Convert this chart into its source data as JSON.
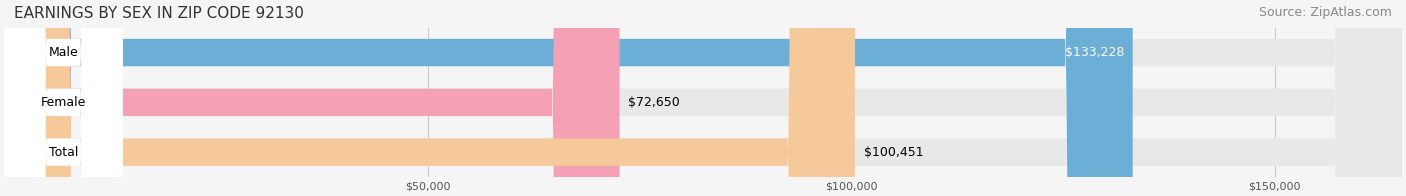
{
  "title": "EARNINGS BY SEX IN ZIP CODE 92130",
  "source": "Source: ZipAtlas.com",
  "categories": [
    "Male",
    "Female",
    "Total"
  ],
  "values": [
    133228,
    72650,
    100451
  ],
  "bar_colors": [
    "#6baed6",
    "#f4a0b5",
    "#f5c99a"
  ],
  "label_colors": [
    "white",
    "black",
    "black"
  ],
  "label_inside": [
    true,
    false,
    false
  ],
  "bg_color": "#f5f5f5",
  "bar_bg_color": "#e8e8e8",
  "xlim": [
    0,
    165000
  ],
  "xticks": [
    50000,
    100000,
    150000
  ],
  "xtick_labels": [
    "$50,000",
    "$100,000",
    "$150,000"
  ],
  "title_fontsize": 11,
  "source_fontsize": 9,
  "bar_label_fontsize": 9,
  "category_fontsize": 9,
  "bar_height": 0.55,
  "figsize": [
    14.06,
    1.96
  ],
  "dpi": 100
}
